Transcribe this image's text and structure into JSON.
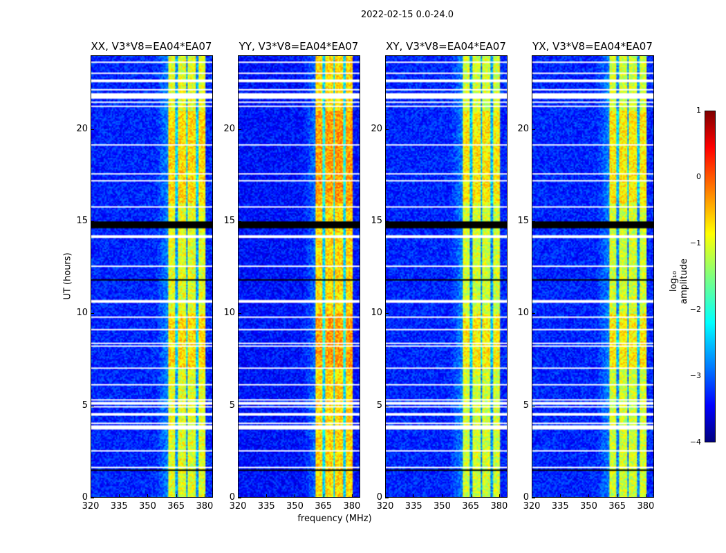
{
  "chart_data": {
    "type": "heatmap",
    "title": "2022-02-15 0.0-24.0",
    "xlabel": "frequency (MHz)",
    "ylabel": "UT (hours)",
    "xlim": [
      320,
      384.4
    ],
    "ylim": [
      0,
      24
    ],
    "xticks": [
      320,
      335,
      350,
      365,
      380
    ],
    "yticks": [
      0,
      5,
      10,
      15,
      20
    ],
    "panels": [
      {
        "title": "XX, V3*V8=EA04*EA07",
        "band_level": -1.0,
        "background_level": -3.2
      },
      {
        "title": "YY, V3*V8=EA04*EA07",
        "band_level": -0.7,
        "background_level": -3.3
      },
      {
        "title": "XY, V3*V8=EA04*EA07",
        "band_level": -1.1,
        "background_level": -3.2
      },
      {
        "title": "YX, V3*V8=EA04*EA07",
        "band_level": -1.1,
        "background_level": -3.2
      }
    ],
    "bright_band_mhz": [
      360.7,
      380.4
    ],
    "dark_channels_mhz": [
      365.4,
      370.9,
      376.4
    ],
    "flagged_hours": [
      [
        23.0,
        23.1
      ],
      [
        22.55,
        22.7
      ],
      [
        21.7,
        21.95
      ],
      [
        21.2,
        21.3
      ],
      [
        14.1,
        14.25
      ],
      [
        10.6,
        10.7
      ],
      [
        5.0,
        5.1
      ],
      [
        4.45,
        4.6
      ],
      [
        3.7,
        3.8
      ],
      [
        2.45,
        2.55
      ]
    ],
    "dark_rows_hours": [
      [
        14.65,
        15.0
      ],
      [
        11.8,
        11.85
      ],
      [
        1.45,
        1.5
      ]
    ],
    "colorbar": {
      "label": "log₁₀ amplitude",
      "range": [
        -4,
        1
      ],
      "ticks": [
        "1",
        "0",
        "−1",
        "−2",
        "−3",
        "−4"
      ],
      "colormap": "jet"
    }
  }
}
